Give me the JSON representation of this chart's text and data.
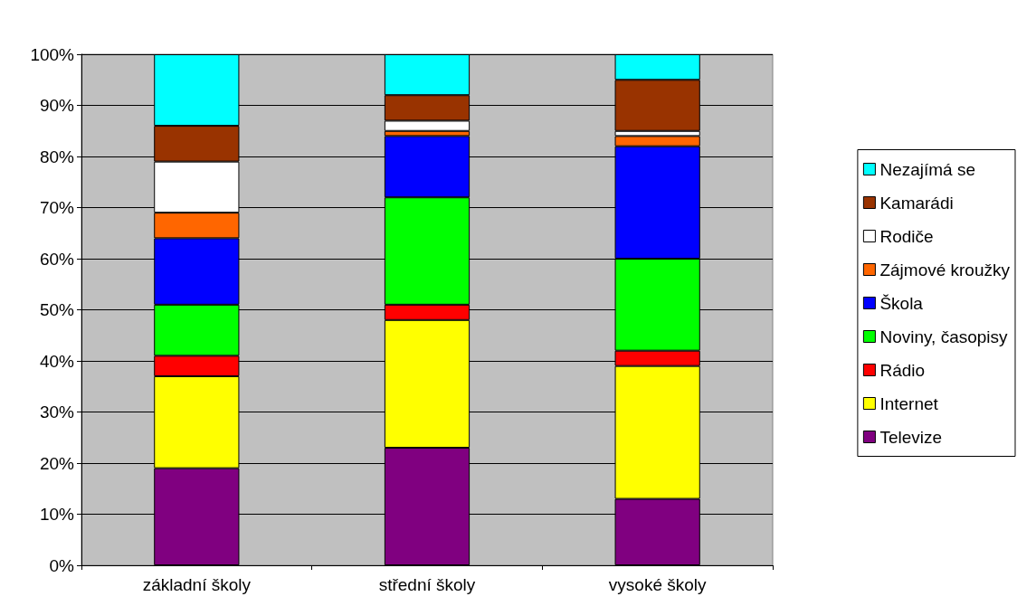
{
  "chart_data": {
    "type": "bar",
    "stacked": true,
    "categories": [
      "základní školy",
      "střední školy",
      "vysoké školy"
    ],
    "series": [
      {
        "name": "Televize",
        "color": "#800080",
        "values": [
          19,
          23,
          13
        ]
      },
      {
        "name": "Internet",
        "color": "#ffff00",
        "values": [
          18,
          25,
          26
        ]
      },
      {
        "name": "Rádio",
        "color": "#ff0000",
        "values": [
          4,
          3,
          3
        ]
      },
      {
        "name": "Noviny, časopisy",
        "color": "#00ff00",
        "values": [
          10,
          21,
          18
        ]
      },
      {
        "name": "Škola",
        "color": "#0000ff",
        "values": [
          13,
          12,
          22
        ]
      },
      {
        "name": "Zájmové kroužky",
        "color": "#ff6600",
        "values": [
          5,
          1,
          2
        ]
      },
      {
        "name": "Rodiče",
        "color": "#ffffff",
        "values": [
          10,
          2,
          1
        ]
      },
      {
        "name": "Kamarádi",
        "color": "#993300",
        "values": [
          7,
          5,
          10
        ]
      },
      {
        "name": "Nezajímá se",
        "color": "#00ffff",
        "values": [
          14,
          8,
          5
        ]
      }
    ],
    "ylim": [
      0,
      100
    ],
    "yticks": [
      {
        "value": 0,
        "label": "0%"
      },
      {
        "value": 10,
        "label": "10%"
      },
      {
        "value": 20,
        "label": "20%"
      },
      {
        "value": 30,
        "label": "30%"
      },
      {
        "value": 40,
        "label": "40%"
      },
      {
        "value": 50,
        "label": "50%"
      },
      {
        "value": 60,
        "label": "60%"
      },
      {
        "value": 70,
        "label": "70%"
      },
      {
        "value": 80,
        "label": "80%"
      },
      {
        "value": 90,
        "label": "90%"
      },
      {
        "value": 100,
        "label": "100%"
      }
    ],
    "grid": "y",
    "legend": "right"
  }
}
